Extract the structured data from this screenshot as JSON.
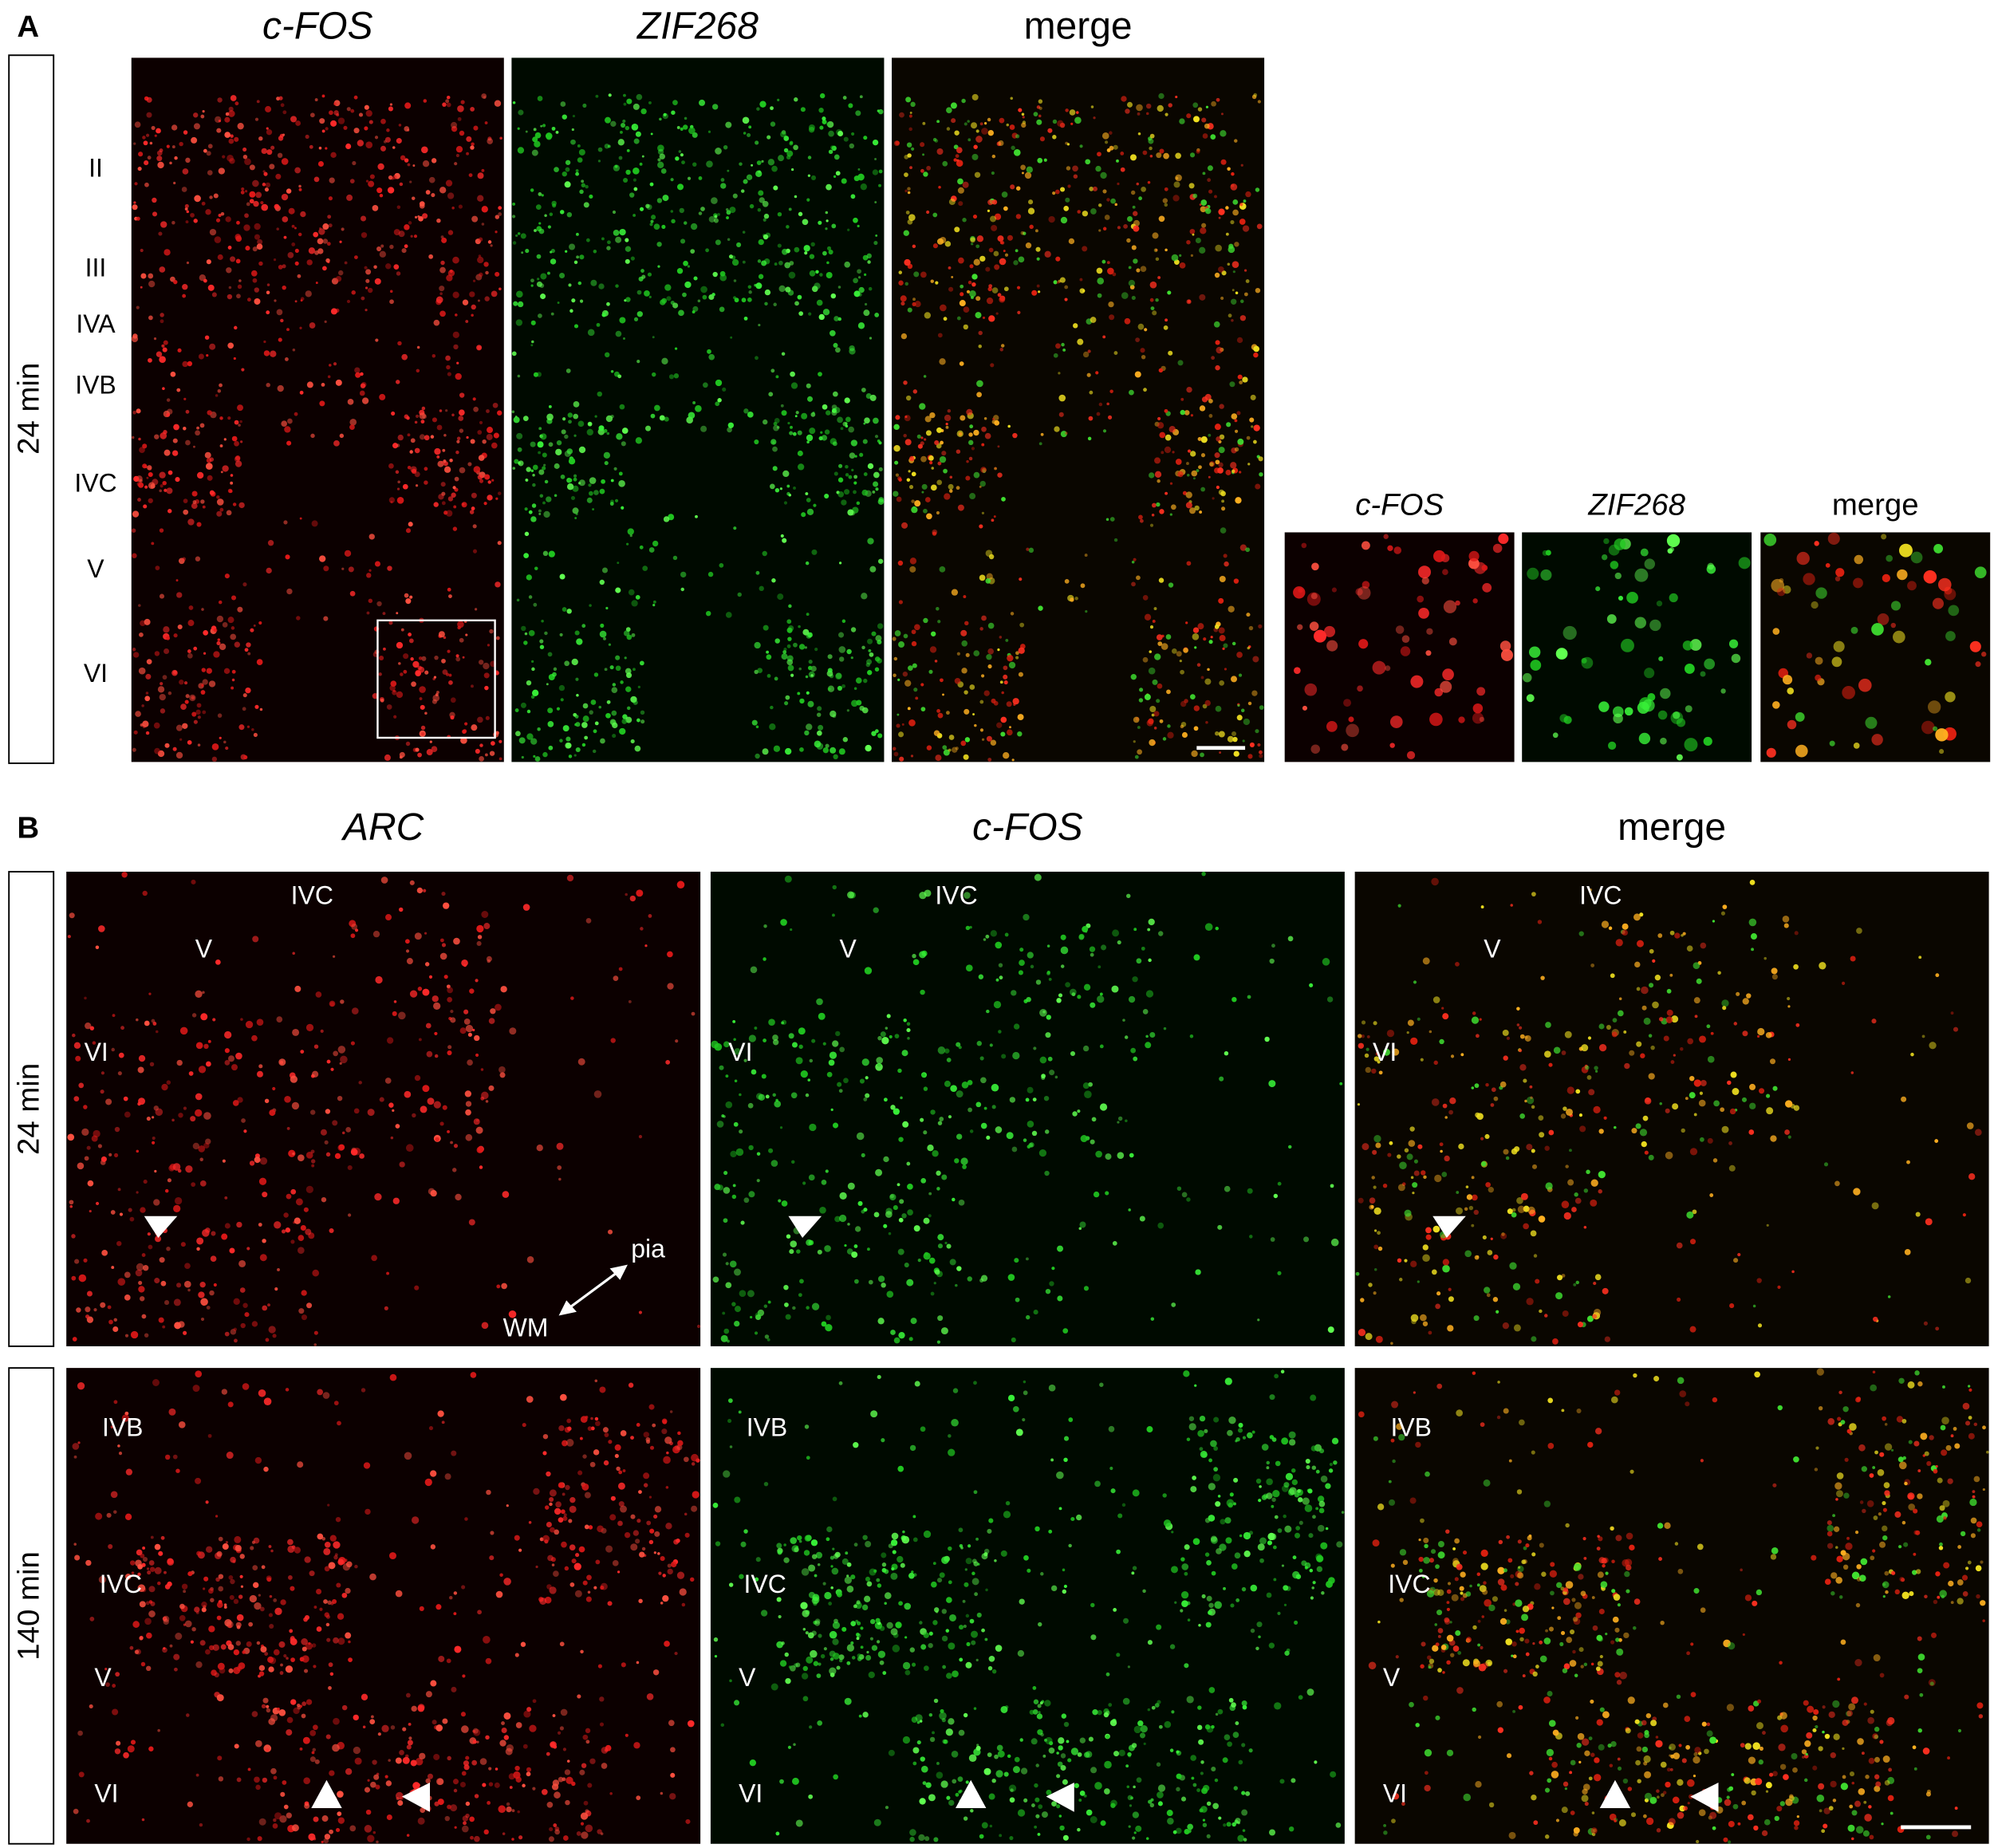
{
  "panel_a": {
    "label": "A",
    "row_label": "24 min",
    "columns": [
      "c-FOS",
      "ZIF268",
      "merge"
    ],
    "layers": [
      "II",
      "III",
      "IVA",
      "IVB",
      "IVC",
      "V",
      "VI"
    ],
    "inset_columns": [
      "c-FOS",
      "ZIF268",
      "merge"
    ]
  },
  "panel_b": {
    "label": "B",
    "columns": [
      "ARC",
      "c-FOS",
      "merge"
    ],
    "rows": [
      {
        "label": "24 min",
        "layers": [
          "IVC",
          "V",
          "VI"
        ]
      },
      {
        "label": "140 min",
        "layers": [
          "IVB",
          "IVC",
          "V",
          "VI"
        ]
      }
    ],
    "orientation": [
      "pia",
      "WM"
    ]
  }
}
